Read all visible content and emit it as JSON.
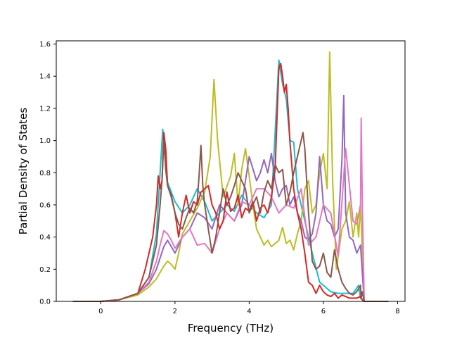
{
  "chart_data": {
    "type": "line",
    "title": "",
    "xlabel": "Frequency (THz)",
    "ylabel": "Partial Density of States",
    "xlim": [
      -1.2,
      8.2
    ],
    "ylim": [
      0.0,
      1.62
    ],
    "xticks": [
      0,
      2,
      4,
      6,
      8
    ],
    "yticks": [
      0.0,
      0.2,
      0.4,
      0.6,
      0.8,
      1.0,
      1.2,
      1.4,
      1.6
    ],
    "xtick_labels": [
      "0",
      "2",
      "4",
      "6",
      "8"
    ],
    "ytick_labels": [
      "0.0",
      "0.2",
      "0.4",
      "0.6",
      "0.8",
      "1.0",
      "1.2",
      "1.4",
      "1.6"
    ],
    "grid": false,
    "legend": "none",
    "series": [
      {
        "color": "#17becf",
        "x": [
          -0.75,
          0,
          0.5,
          1.0,
          1.3,
          1.5,
          1.6,
          1.67,
          1.72,
          1.8,
          2.0,
          2.2,
          2.4,
          2.6,
          2.8,
          3.0,
          3.2,
          3.4,
          3.6,
          3.8,
          4.0,
          4.2,
          4.4,
          4.6,
          4.8,
          4.9,
          5.0,
          5.1,
          5.2,
          5.3,
          5.5,
          5.7,
          5.9,
          6.0,
          6.2,
          6.4,
          6.6,
          6.8,
          6.95,
          7.0,
          7.1,
          7.75
        ],
        "y": [
          0,
          0,
          0.01,
          0.05,
          0.15,
          0.42,
          0.8,
          1.07,
          0.95,
          0.74,
          0.62,
          0.55,
          0.6,
          0.7,
          0.62,
          0.5,
          0.55,
          0.6,
          0.56,
          0.66,
          0.6,
          0.55,
          0.52,
          0.6,
          1.5,
          1.35,
          1.26,
          1.0,
          0.99,
          0.7,
          0.5,
          0.3,
          0.12,
          0.1,
          0.06,
          0.05,
          0.05,
          0.05,
          0.1,
          0.02,
          0,
          0
        ]
      },
      {
        "color": "#bcbd22",
        "x": [
          -0.75,
          0,
          0.5,
          1.0,
          1.3,
          1.5,
          1.6,
          1.7,
          1.8,
          1.9,
          2.0,
          2.1,
          2.2,
          2.4,
          2.6,
          2.8,
          2.95,
          3.05,
          3.15,
          3.3,
          3.5,
          3.6,
          3.7,
          3.8,
          3.9,
          4.0,
          4.1,
          4.2,
          4.3,
          4.4,
          4.5,
          4.6,
          4.7,
          4.8,
          4.9,
          5.0,
          5.1,
          5.2,
          5.3,
          5.4,
          5.5,
          5.6,
          5.7,
          5.8,
          5.9,
          6.0,
          6.1,
          6.17,
          6.25,
          6.35,
          6.5,
          6.6,
          6.7,
          6.8,
          6.9,
          6.95,
          7.0,
          7.1,
          7.75
        ],
        "y": [
          0,
          0,
          0.01,
          0.04,
          0.09,
          0.14,
          0.18,
          0.22,
          0.25,
          0.23,
          0.2,
          0.3,
          0.42,
          0.5,
          0.58,
          0.68,
          0.9,
          1.38,
          1.0,
          0.65,
          0.78,
          0.92,
          0.6,
          0.82,
          0.95,
          0.78,
          0.6,
          0.45,
          0.4,
          0.35,
          0.38,
          0.34,
          0.36,
          0.38,
          0.46,
          0.36,
          0.38,
          0.32,
          0.42,
          0.5,
          0.7,
          0.75,
          0.55,
          0.6,
          0.8,
          0.92,
          0.7,
          1.55,
          0.75,
          0.2,
          0.45,
          0.5,
          0.62,
          0.4,
          0.55,
          0.4,
          0.6,
          0,
          0
        ]
      },
      {
        "color": "#9467bd",
        "x": [
          -0.75,
          0,
          0.5,
          1.0,
          1.3,
          1.5,
          1.6,
          1.7,
          1.8,
          1.9,
          2.0,
          2.2,
          2.4,
          2.6,
          2.8,
          3.0,
          3.2,
          3.4,
          3.6,
          3.8,
          4.0,
          4.2,
          4.3,
          4.4,
          4.5,
          4.6,
          4.7,
          4.8,
          4.9,
          5.0,
          5.1,
          5.2,
          5.3,
          5.4,
          5.5,
          5.6,
          5.7,
          5.8,
          5.9,
          6.0,
          6.1,
          6.2,
          6.3,
          6.4,
          6.5,
          6.55,
          6.6,
          6.7,
          6.8,
          6.9,
          7.0,
          7.1,
          7.75
        ],
        "y": [
          0,
          0,
          0.01,
          0.05,
          0.11,
          0.2,
          0.27,
          0.34,
          0.38,
          0.34,
          0.3,
          0.4,
          0.45,
          0.55,
          0.52,
          0.45,
          0.6,
          0.55,
          0.5,
          0.6,
          0.9,
          0.75,
          0.8,
          0.88,
          0.8,
          0.92,
          0.75,
          0.65,
          0.7,
          0.72,
          0.6,
          0.65,
          0.55,
          0.5,
          0.4,
          0.38,
          0.42,
          0.55,
          0.9,
          0.6,
          0.5,
          0.48,
          0.4,
          0.45,
          0.88,
          1.28,
          0.55,
          0.4,
          0.38,
          0.3,
          0.35,
          0,
          0
        ]
      },
      {
        "color": "#e377c2",
        "x": [
          -0.75,
          0,
          0.5,
          1.0,
          1.3,
          1.5,
          1.6,
          1.7,
          1.8,
          1.9,
          2.0,
          2.2,
          2.4,
          2.6,
          2.8,
          3.0,
          3.2,
          3.4,
          3.6,
          3.8,
          4.0,
          4.2,
          4.4,
          4.6,
          4.8,
          5.0,
          5.2,
          5.4,
          5.6,
          5.8,
          6.0,
          6.2,
          6.4,
          6.6,
          6.8,
          6.9,
          7.0,
          7.02,
          7.05,
          7.1,
          7.75
        ],
        "y": [
          0,
          0,
          0.01,
          0.05,
          0.12,
          0.25,
          0.35,
          0.44,
          0.42,
          0.38,
          0.33,
          0.4,
          0.45,
          0.35,
          0.36,
          0.3,
          0.45,
          0.55,
          0.5,
          0.62,
          0.6,
          0.7,
          0.7,
          0.65,
          0.55,
          0.6,
          0.58,
          0.7,
          0.35,
          0.4,
          0.6,
          0.55,
          0.28,
          0.95,
          0.5,
          0.48,
          0.6,
          1.14,
          0.6,
          0,
          0
        ]
      },
      {
        "color": "#d62728",
        "x": [
          -0.75,
          0,
          0.5,
          1.0,
          1.2,
          1.4,
          1.5,
          1.55,
          1.6,
          1.65,
          1.7,
          1.75,
          1.8,
          1.9,
          2.0,
          2.1,
          2.2,
          2.3,
          2.4,
          2.5,
          2.6,
          2.7,
          2.8,
          2.9,
          3.0,
          3.1,
          3.2,
          3.3,
          3.4,
          3.5,
          3.6,
          3.7,
          3.8,
          3.9,
          4.0,
          4.1,
          4.2,
          4.3,
          4.4,
          4.5,
          4.6,
          4.7,
          4.8,
          4.85,
          4.9,
          4.95,
          5.0,
          5.05,
          5.1,
          5.2,
          5.3,
          5.4,
          5.5,
          5.6,
          5.7,
          5.8,
          5.9,
          6.0,
          6.1,
          6.2,
          6.3,
          6.4,
          6.5,
          6.6,
          6.7,
          6.8,
          6.9,
          7.0,
          7.05,
          7.1,
          7.75
        ],
        "y": [
          0,
          0,
          0.01,
          0.05,
          0.2,
          0.4,
          0.6,
          0.78,
          0.7,
          0.75,
          1.05,
          0.95,
          0.72,
          0.65,
          0.55,
          0.4,
          0.55,
          0.66,
          0.55,
          0.62,
          0.6,
          0.68,
          0.7,
          0.72,
          0.6,
          0.55,
          0.45,
          0.5,
          0.68,
          0.56,
          0.58,
          0.66,
          0.52,
          0.58,
          0.56,
          0.62,
          0.5,
          0.58,
          0.6,
          0.55,
          0.65,
          0.82,
          1.45,
          1.48,
          1.4,
          1.3,
          1.35,
          1.2,
          0.99,
          0.7,
          0.55,
          0.45,
          0.3,
          0.12,
          0.1,
          0.05,
          0.1,
          0.06,
          0.04,
          0.03,
          0.05,
          0.02,
          0.04,
          0.03,
          0.02,
          0.02,
          0.02,
          0.03,
          0.01,
          0,
          0
        ]
      },
      {
        "color": "#8c564b",
        "x": [
          -0.75,
          0,
          0.5,
          1.0,
          1.3,
          1.5,
          1.6,
          1.65,
          1.7,
          1.75,
          1.8,
          1.9,
          2.0,
          2.1,
          2.2,
          2.3,
          2.4,
          2.5,
          2.6,
          2.65,
          2.7,
          2.75,
          2.8,
          2.9,
          3.0,
          3.1,
          3.2,
          3.3,
          3.4,
          3.5,
          3.6,
          3.7,
          3.8,
          3.9,
          4.0,
          4.1,
          4.2,
          4.3,
          4.4,
          4.5,
          4.6,
          4.7,
          4.8,
          4.9,
          5.0,
          5.1,
          5.2,
          5.3,
          5.4,
          5.45,
          5.5,
          5.6,
          5.7,
          5.8,
          5.9,
          6.0,
          6.1,
          6.2,
          6.3,
          6.4,
          6.5,
          6.6,
          6.7,
          6.8,
          6.9,
          7.0,
          7.02,
          7.05,
          7.1,
          7.75
        ],
        "y": [
          0,
          0,
          0.01,
          0.05,
          0.15,
          0.35,
          0.6,
          0.75,
          1.0,
          0.82,
          0.72,
          0.66,
          0.55,
          0.48,
          0.45,
          0.52,
          0.58,
          0.55,
          0.62,
          0.78,
          0.97,
          0.72,
          0.6,
          0.45,
          0.3,
          0.4,
          0.55,
          0.7,
          0.6,
          0.65,
          0.72,
          0.8,
          0.75,
          0.7,
          0.55,
          0.6,
          0.65,
          0.55,
          0.68,
          0.75,
          0.7,
          0.85,
          0.8,
          0.82,
          0.6,
          0.68,
          0.8,
          0.9,
          1.0,
          1.05,
          0.95,
          0.55,
          0.25,
          0.2,
          0.22,
          0.3,
          0.18,
          0.15,
          0.32,
          0.2,
          0.12,
          0.08,
          0.05,
          0.04,
          0.06,
          0.1,
          0.02,
          0.06,
          0,
          0
        ]
      }
    ]
  }
}
